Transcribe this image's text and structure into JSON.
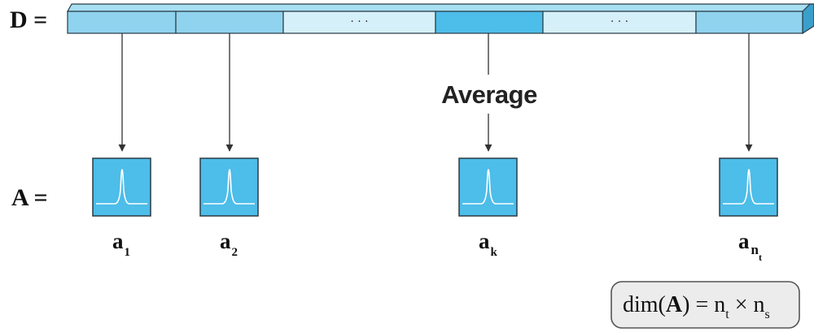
{
  "labels": {
    "D": "D =",
    "A": "A =",
    "average": "Average"
  },
  "segments": [
    {
      "fill": "#8fd3ef"
    },
    {
      "fill": "#8fd3ef"
    },
    {
      "fill": "#d6f0fa",
      "text": "· · ·"
    },
    {
      "fill": "#4dbde9"
    },
    {
      "fill": "#d6f0fa",
      "text": "· · ·"
    },
    {
      "fill": "#8fd3ef"
    }
  ],
  "vectors": [
    {
      "base": "a",
      "sub": "1"
    },
    {
      "base": "a",
      "sub": "2"
    },
    {
      "base": "a",
      "sub": "k"
    },
    {
      "base": "a",
      "sub": "n",
      "subsub": "t"
    }
  ],
  "formula": {
    "dim": "dim(",
    "A": "A",
    "close_eq": ") = ",
    "n1": "n",
    "t": "t",
    "times": " × ",
    "n2": "n",
    "s": "s"
  },
  "colors": {
    "box_fill": "#4dbde9",
    "box_stroke": "#2a3a44",
    "bar_top": "#a8dff3",
    "bar_side": "#3a9fcb",
    "formula_bg": "#ececec"
  }
}
